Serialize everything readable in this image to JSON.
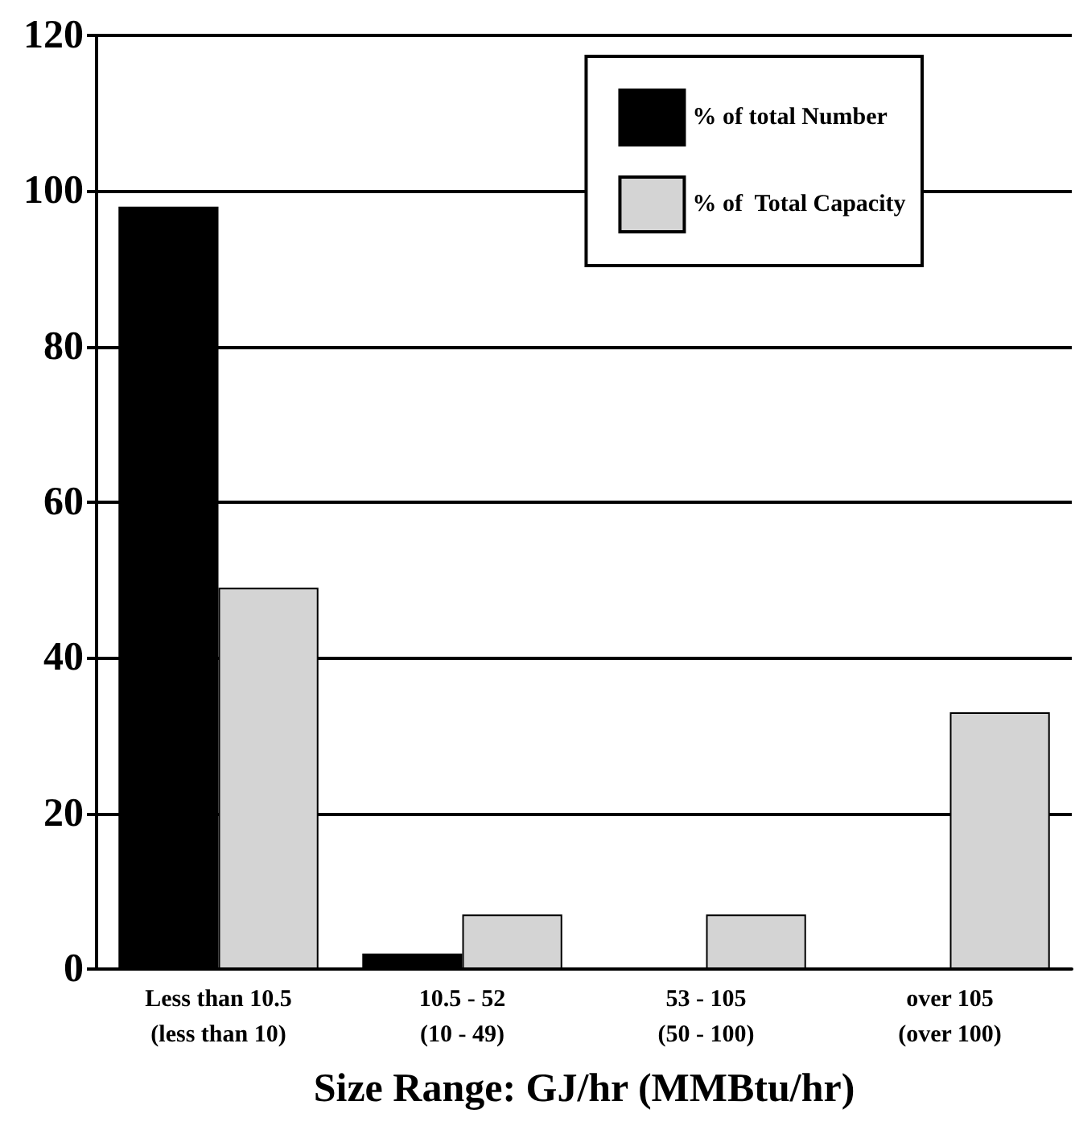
{
  "chart_data": {
    "type": "bar",
    "xlabel": "Size Range: GJ/hr (MMBtu/hr)",
    "categories": [
      "Less than 10.5\n(less than 10)",
      "10.5 - 52\n(10 - 49)",
      "53 - 105\n(50 - 100)",
      "over 105\n(over 100)"
    ],
    "series": [
      {
        "name": "% of total Number",
        "color": "#000000",
        "values": [
          98,
          2,
          0,
          0
        ]
      },
      {
        "name": "% of  Total Capacity",
        "color": "#d4d4d4",
        "values": [
          49,
          7,
          7,
          33
        ]
      }
    ],
    "ylim": [
      0,
      120
    ],
    "yticks": [
      0,
      20,
      40,
      60,
      80,
      100,
      120
    ],
    "grid": "y",
    "legend": "top right"
  }
}
